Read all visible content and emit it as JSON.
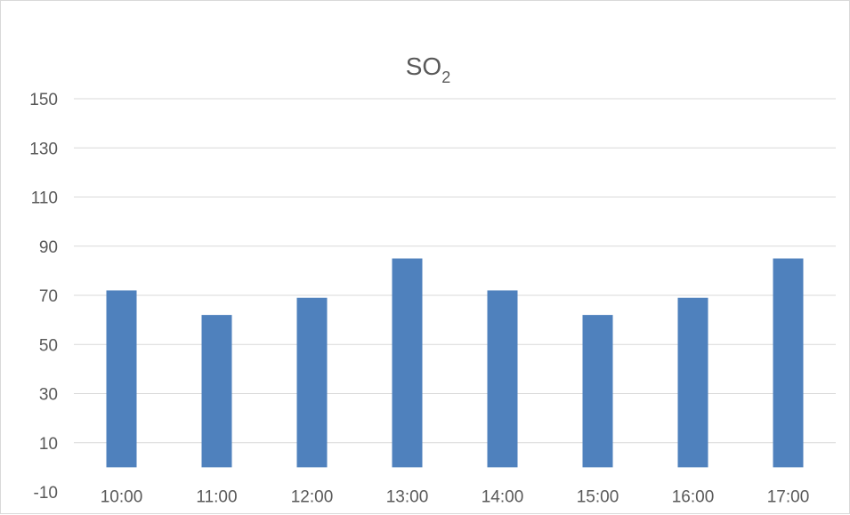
{
  "chart_data": {
    "type": "bar",
    "title": "SO",
    "title_subscript": "2",
    "xlabel": "",
    "ylabel": "",
    "categories": [
      "10:00",
      "11:00",
      "12:00",
      "13:00",
      "14:00",
      "15:00",
      "16:00",
      "17:00"
    ],
    "values": [
      72,
      62,
      69,
      85,
      72,
      62,
      69,
      85
    ],
    "ylim": [
      -10,
      150
    ],
    "yticks": [
      -10,
      10,
      30,
      50,
      70,
      90,
      110,
      130,
      150
    ],
    "grid": true,
    "legend": "none",
    "colors": {
      "bar": "#4f81bd",
      "grid": "#d9d9d9",
      "text": "#595959"
    }
  }
}
